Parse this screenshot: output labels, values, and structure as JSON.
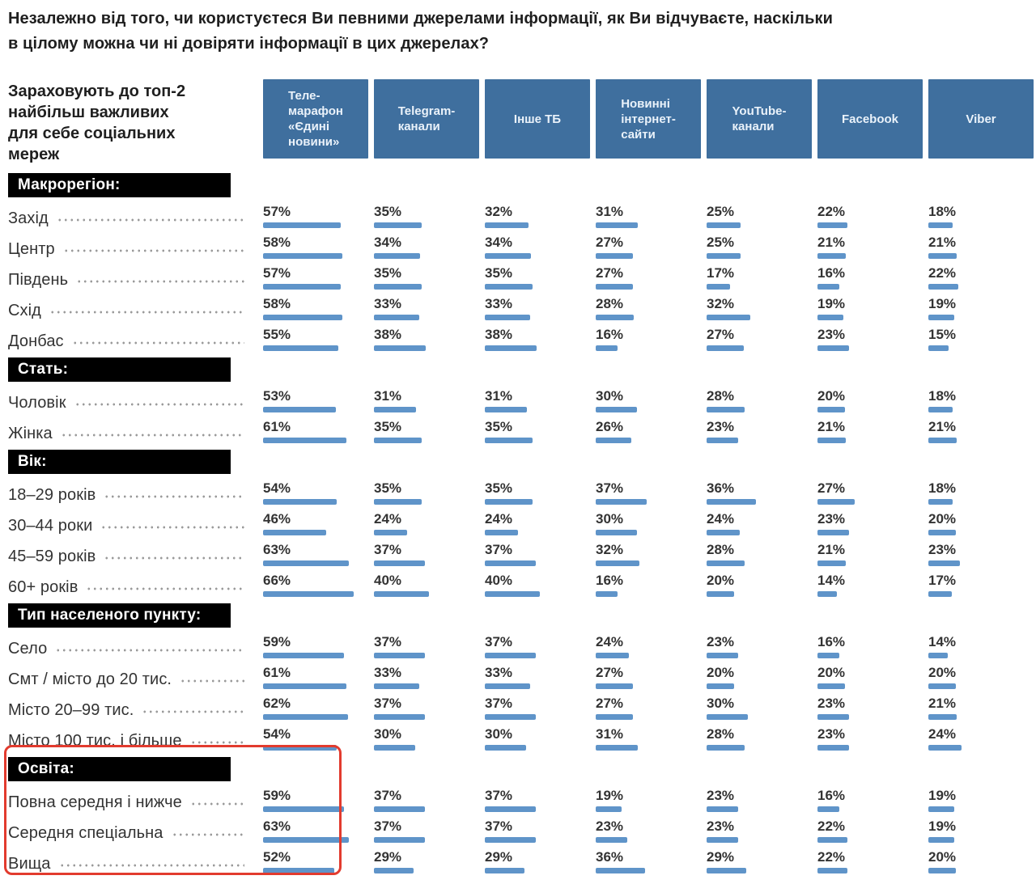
{
  "colors": {
    "column_header_bg": "#3f6f9e",
    "column_header_text": "#eaf2fa",
    "bar": "#5f94c9",
    "section_header_bg": "#000000",
    "section_header_text": "#ffffff",
    "highlight_border": "#e23b2e",
    "text": "#333333",
    "dot_leader": "#9b9b9b"
  },
  "chart_data": {
    "type": "bar",
    "unit": "%",
    "value_range": [
      0,
      100
    ],
    "title": "Незалежно від того, чи користуєтеся Ви певними джерелами інформації, як Ви відчуваєте, наскільки\nв цілому можна чи ні довіряти інформації в цих джерелах?",
    "row_header": "Зараховують до топ-2\nнайбільш важливих\nдля себе соціальних\nмереж",
    "columns": [
      "Теле-\nмарафон\n«Єдині\nновини»",
      "Telegram-\nканали",
      "Інше ТБ",
      "Новинні\nінтернет-\nсайти",
      "YouTube-\nканали",
      "Facebook",
      "Viber"
    ],
    "sections": [
      {
        "title": "Макрорегіон:",
        "highlighted": false,
        "rows": [
          {
            "label": "Захід",
            "values": [
              57,
              35,
              32,
              31,
              25,
              22,
              18
            ]
          },
          {
            "label": "Центр",
            "values": [
              58,
              34,
              34,
              27,
              25,
              21,
              21
            ]
          },
          {
            "label": "Південь",
            "values": [
              57,
              35,
              35,
              27,
              17,
              16,
              22
            ]
          },
          {
            "label": "Схід",
            "values": [
              58,
              33,
              33,
              28,
              32,
              19,
              19
            ]
          },
          {
            "label": "Донбас",
            "values": [
              55,
              38,
              38,
              16,
              27,
              23,
              15
            ]
          }
        ]
      },
      {
        "title": "Стать:",
        "highlighted": false,
        "rows": [
          {
            "label": "Чоловік",
            "values": [
              53,
              31,
              31,
              30,
              28,
              20,
              18
            ]
          },
          {
            "label": "Жінка",
            "values": [
              61,
              35,
              35,
              26,
              23,
              21,
              21
            ]
          }
        ]
      },
      {
        "title": "Вік:",
        "highlighted": false,
        "rows": [
          {
            "label": "18–29 років",
            "values": [
              54,
              35,
              35,
              37,
              36,
              27,
              18
            ]
          },
          {
            "label": "30–44 роки",
            "values": [
              46,
              24,
              24,
              30,
              24,
              23,
              20
            ]
          },
          {
            "label": "45–59 років",
            "values": [
              63,
              37,
              37,
              32,
              28,
              21,
              23
            ]
          },
          {
            "label": "60+ років",
            "values": [
              66,
              40,
              40,
              16,
              20,
              14,
              17
            ]
          }
        ]
      },
      {
        "title": "Тип населеного пункту:",
        "highlighted": false,
        "rows": [
          {
            "label": "Село",
            "values": [
              59,
              37,
              37,
              24,
              23,
              16,
              14
            ]
          },
          {
            "label": "Смт / місто до 20 тис.",
            "values": [
              61,
              33,
              33,
              27,
              20,
              20,
              20
            ]
          },
          {
            "label": "Місто 20–99 тис.",
            "values": [
              62,
              37,
              37,
              27,
              30,
              23,
              21
            ]
          },
          {
            "label": "Місто 100 тис. і більше",
            "values": [
              54,
              30,
              30,
              31,
              28,
              23,
              24
            ]
          }
        ]
      },
      {
        "title": "Освіта:",
        "highlighted": true,
        "rows": [
          {
            "label": "Повна середня і нижче",
            "values": [
              59,
              37,
              37,
              19,
              23,
              16,
              19
            ]
          },
          {
            "label": "Середня спеціальна",
            "values": [
              63,
              37,
              37,
              23,
              23,
              22,
              19
            ]
          },
          {
            "label": "Вища",
            "values": [
              52,
              29,
              29,
              36,
              29,
              22,
              20
            ]
          }
        ]
      }
    ],
    "legend_position": "none",
    "grid": false
  }
}
